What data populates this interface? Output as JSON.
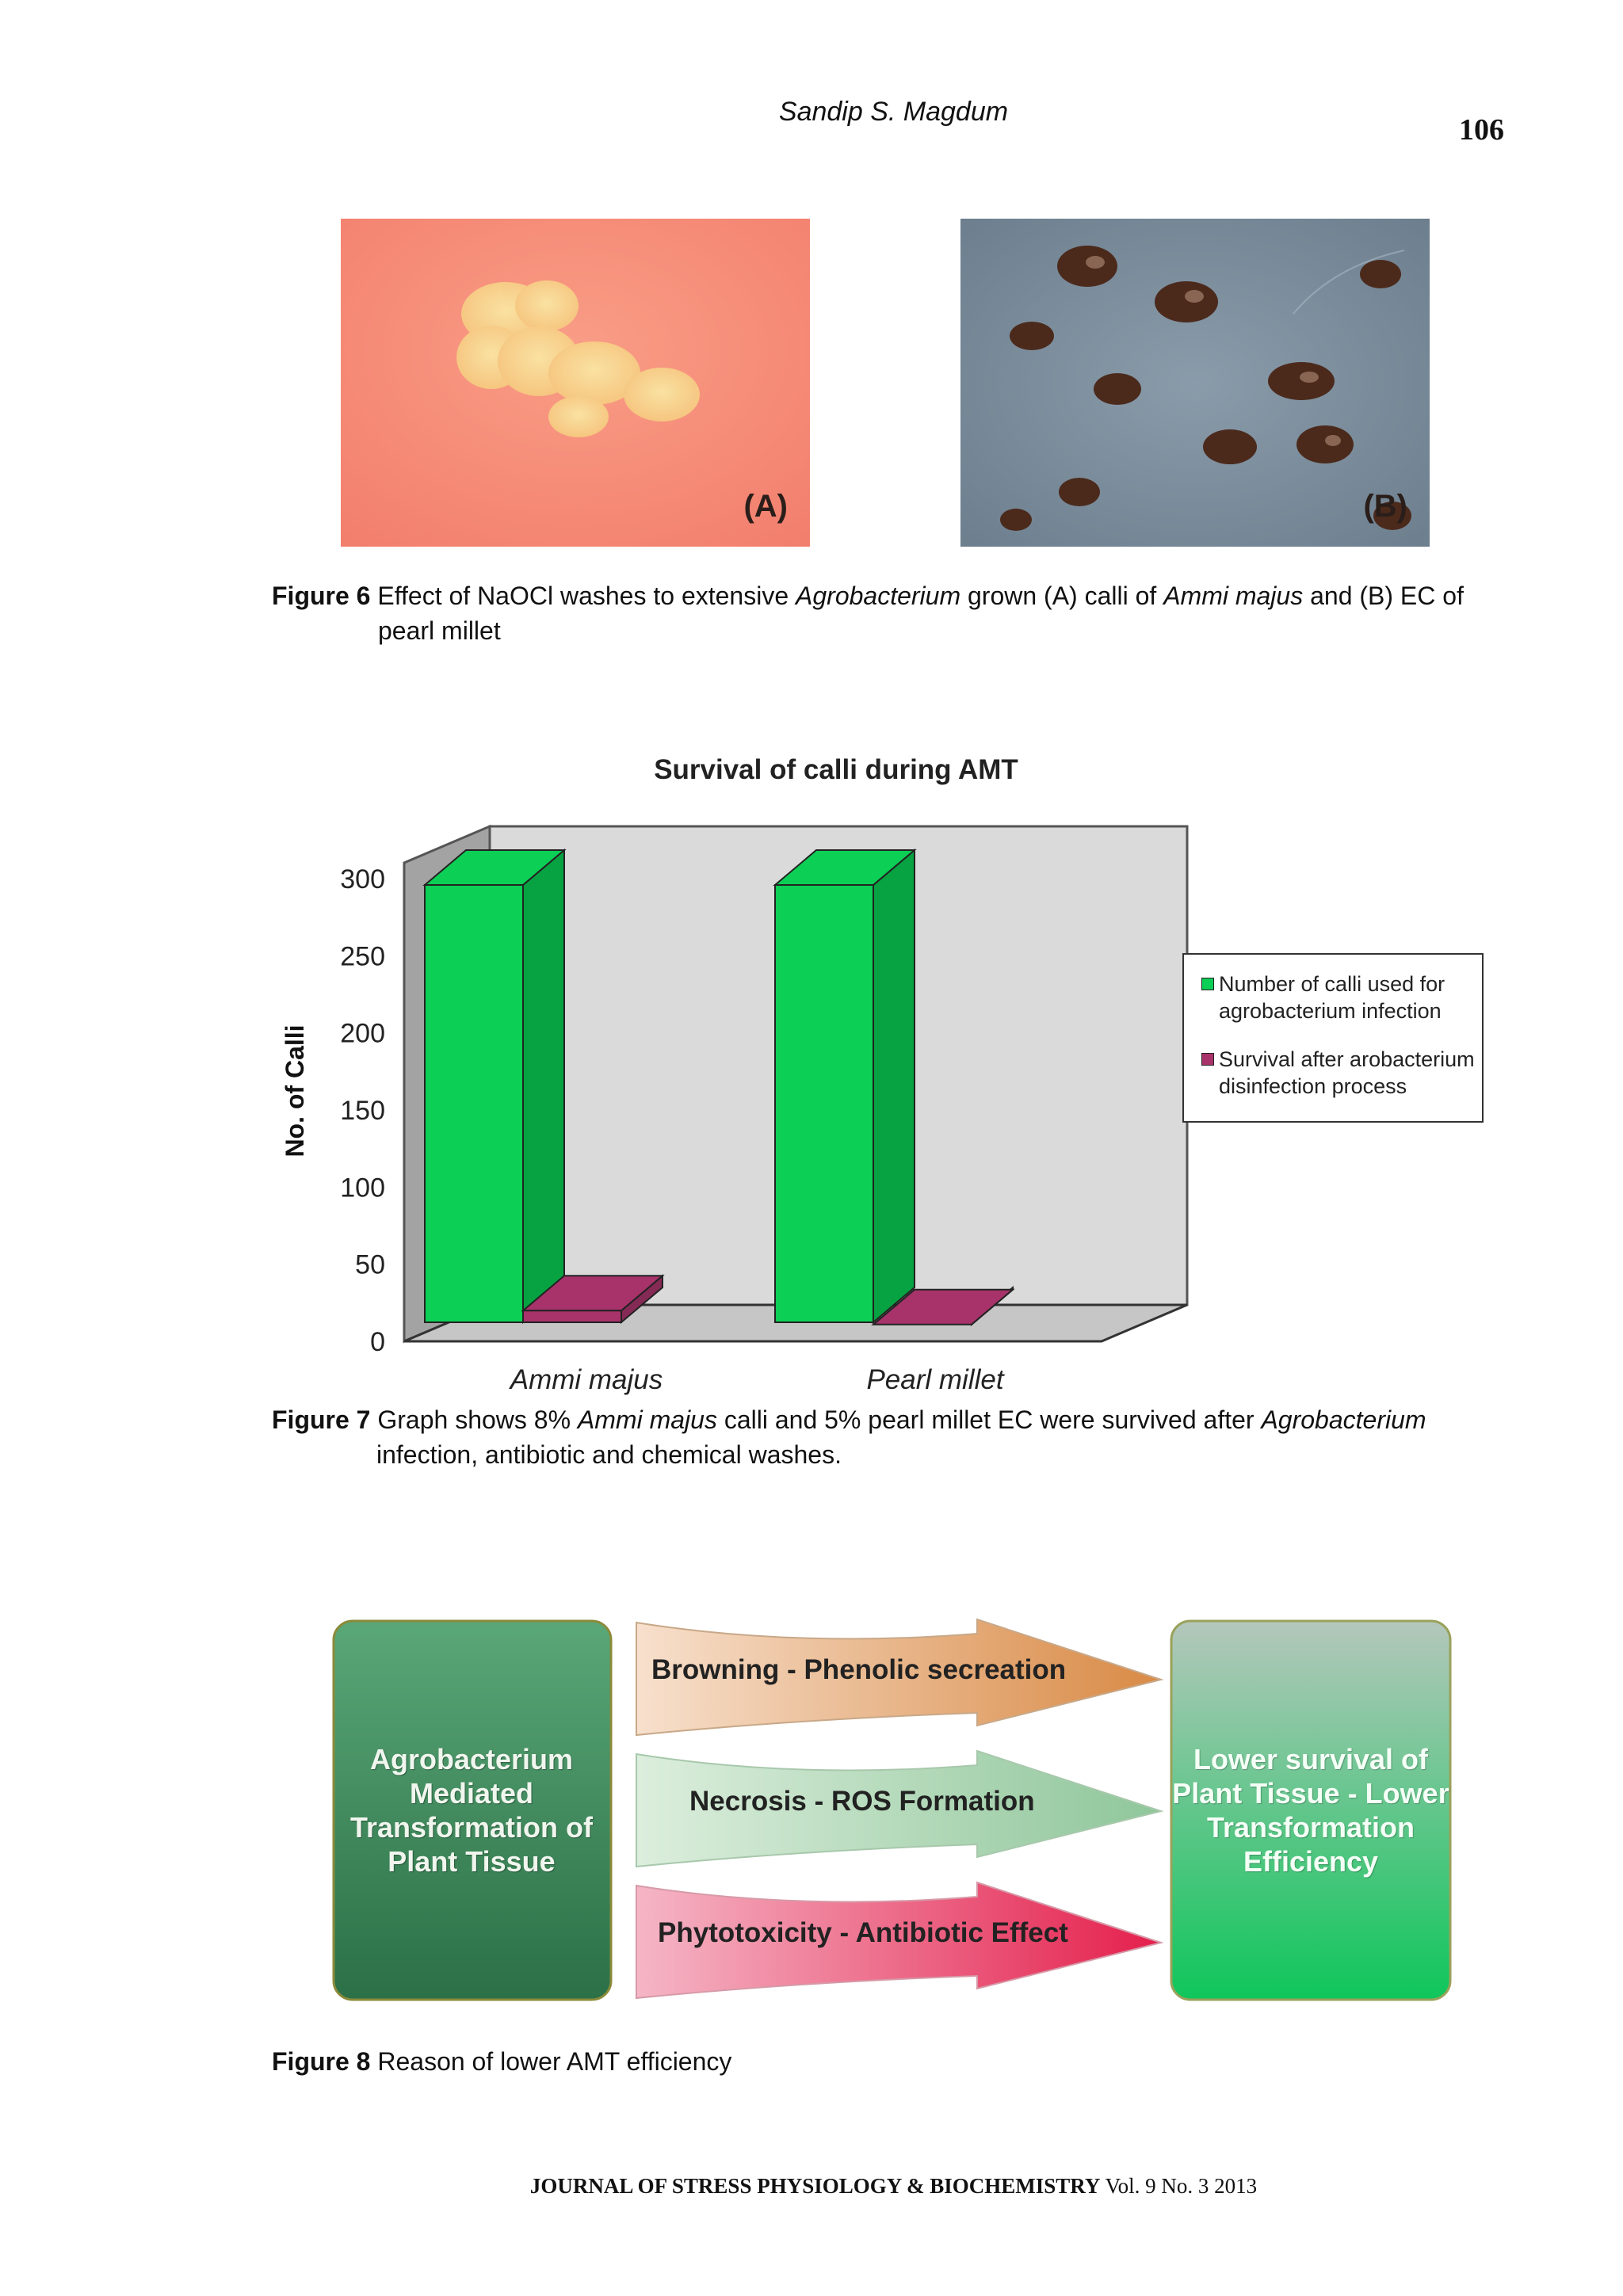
{
  "header": {
    "author": "Sandip S. Magdum",
    "page_number": "106"
  },
  "figure6": {
    "label_a": "(A)",
    "label_b": "(B)",
    "caption": {
      "label": "Figure 6",
      "parts": [
        " Effect of NaOCl washes to extensive ",
        "Agrobacterium",
        " grown (A) calli of ",
        "Ammi majus",
        " and (B) EC of pearl millet"
      ]
    }
  },
  "chart_data": {
    "type": "bar",
    "title": "Survival of calli during AMT",
    "ylabel": "No. of Calli",
    "xlabel": "",
    "categories": [
      "Ammi majus",
      "Pearl millet"
    ],
    "ylim": [
      0,
      300
    ],
    "yticks": [
      "0",
      "50",
      "100",
      "150",
      "200",
      "250",
      "300"
    ],
    "series": [
      {
        "name": "Number of calli used for agrobacterium infection",
        "values": [
          300,
          300
        ],
        "color": "#0ccf55",
        "color_dark": "#07a241"
      },
      {
        "name": "Survival after arobacterium disinfection process",
        "values": [
          24,
          15
        ],
        "color": "#a8336b",
        "color_dark": "#842a55"
      }
    ],
    "legend_position": "right",
    "three_d": true
  },
  "figure7": {
    "caption": {
      "label": "Figure 7",
      "parts": [
        " Graph shows 8% ",
        "Ammi majus",
        " calli and 5% pearl millet EC were survived after ",
        "Agrobacterium",
        " infection, antibiotic and chemical washes."
      ]
    }
  },
  "figure8": {
    "left_box": "Agrobacterium Mediated Transformation of Plant Tissue",
    "right_box": "Lower survival of Plant Tissue - Lower Transformation Efficiency",
    "arrows": [
      {
        "text": "Browning - Phenolic secreation",
        "color_start": "#f7e0cd",
        "color_end": "#d98a45"
      },
      {
        "text": "Necrosis - ROS Formation",
        "color_start": "#dceedd",
        "color_end": "#8fc69a"
      },
      {
        "text": "Phytotoxicity - Antibiotic Effect",
        "color_start": "#f5b6c6",
        "color_end": "#e41f4c"
      }
    ],
    "caption": {
      "label": "Figure 8",
      "text": " Reason of lower AMT efficiency"
    }
  },
  "footer": {
    "journal": "JOURNAL OF STRESS PHYSIOLOGY & BIOCHEMISTRY",
    "issue": " Vol. 9 No. 3 2013"
  }
}
